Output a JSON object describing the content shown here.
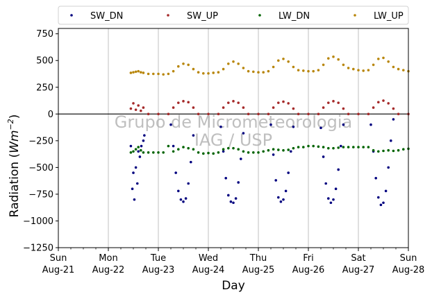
{
  "chart_data": {
    "type": "scatter",
    "title": "",
    "xlabel": "Day",
    "ylabel": "Radiation (Wm^-2)",
    "ylabel_main": "Radiation (",
    "ylabel_unit": "Wm",
    "ylabel_exp": "−2",
    "ylabel_close": ")",
    "xlim": [
      "2008-08-21",
      "2008-08-28"
    ],
    "ylim": [
      -1250,
      800
    ],
    "yticks": [
      -1250,
      -1000,
      -750,
      -500,
      -250,
      0,
      250,
      500,
      750
    ],
    "ytick_labels": [
      "−1250",
      "−1000",
      "−750",
      "−500",
      "−250",
      "0",
      "250",
      "500",
      "750"
    ],
    "xticks": [
      {
        "day": "Sun",
        "date": "Aug-21"
      },
      {
        "day": "Mon",
        "date": "Aug-22"
      },
      {
        "day": "Tue",
        "date": "Aug-23"
      },
      {
        "day": "Wed",
        "date": "Aug-24"
      },
      {
        "day": "Thu",
        "date": "Aug-25"
      },
      {
        "day": "Fri",
        "date": "Aug-26"
      },
      {
        "day": "Sat",
        "date": "Aug-27"
      },
      {
        "day": "Sun",
        "date": "Aug-28"
      }
    ],
    "grid": "vertical",
    "zero_line": 0,
    "legend_placement": "top",
    "watermark": [
      "Grupo de Micrometeorologia",
      "IAG / USP"
    ],
    "series": [
      {
        "name": "SW_DN",
        "color": "#00007f",
        "points": [
          [
            1.45,
            -300
          ],
          [
            1.48,
            -700
          ],
          [
            1.5,
            -550
          ],
          [
            1.52,
            -800
          ],
          [
            1.55,
            -500
          ],
          [
            1.58,
            -650
          ],
          [
            1.6,
            -350
          ],
          [
            1.63,
            -400
          ],
          [
            1.66,
            -300
          ],
          [
            1.7,
            -250
          ],
          [
            1.72,
            -200
          ],
          [
            2.25,
            -100
          ],
          [
            2.3,
            -300
          ],
          [
            2.35,
            -550
          ],
          [
            2.4,
            -720
          ],
          [
            2.45,
            -800
          ],
          [
            2.5,
            -820
          ],
          [
            2.55,
            -790
          ],
          [
            2.6,
            -650
          ],
          [
            2.65,
            -450
          ],
          [
            2.7,
            -200
          ],
          [
            3.25,
            -120
          ],
          [
            3.3,
            -350
          ],
          [
            3.35,
            -600
          ],
          [
            3.4,
            -760
          ],
          [
            3.45,
            -820
          ],
          [
            3.5,
            -830
          ],
          [
            3.55,
            -790
          ],
          [
            3.6,
            -640
          ],
          [
            3.65,
            -420
          ],
          [
            3.7,
            -180
          ],
          [
            4.25,
            -100
          ],
          [
            4.3,
            -380
          ],
          [
            4.35,
            -620
          ],
          [
            4.4,
            -780
          ],
          [
            4.45,
            -820
          ],
          [
            4.5,
            -800
          ],
          [
            4.55,
            -720
          ],
          [
            4.6,
            -550
          ],
          [
            4.65,
            -350
          ],
          [
            4.7,
            -120
          ],
          [
            5.25,
            -130
          ],
          [
            5.3,
            -400
          ],
          [
            5.35,
            -650
          ],
          [
            5.4,
            -790
          ],
          [
            5.45,
            -830
          ],
          [
            5.5,
            -800
          ],
          [
            5.55,
            -700
          ],
          [
            5.6,
            -520
          ],
          [
            5.65,
            -300
          ],
          [
            5.7,
            -100
          ],
          [
            6.25,
            -100
          ],
          [
            6.3,
            -350
          ],
          [
            6.35,
            -600
          ],
          [
            6.4,
            -780
          ],
          [
            6.45,
            -850
          ],
          [
            6.5,
            -830
          ],
          [
            6.55,
            -720
          ],
          [
            6.6,
            -500
          ],
          [
            6.65,
            -250
          ],
          [
            6.7,
            -50
          ]
        ]
      },
      {
        "name": "SW_UP",
        "color": "#a52a2a",
        "points": [
          [
            1.45,
            50
          ],
          [
            1.5,
            100
          ],
          [
            1.55,
            40
          ],
          [
            1.6,
            80
          ],
          [
            1.65,
            30
          ],
          [
            1.7,
            60
          ],
          [
            1.8,
            0
          ],
          [
            2.0,
            0
          ],
          [
            2.2,
            0
          ],
          [
            2.3,
            60
          ],
          [
            2.4,
            105
          ],
          [
            2.5,
            120
          ],
          [
            2.6,
            110
          ],
          [
            2.7,
            60
          ],
          [
            2.8,
            0
          ],
          [
            3.0,
            0
          ],
          [
            3.2,
            0
          ],
          [
            3.3,
            60
          ],
          [
            3.4,
            105
          ],
          [
            3.5,
            120
          ],
          [
            3.6,
            105
          ],
          [
            3.7,
            60
          ],
          [
            3.8,
            0
          ],
          [
            4.0,
            0
          ],
          [
            4.2,
            0
          ],
          [
            4.3,
            60
          ],
          [
            4.4,
            105
          ],
          [
            4.5,
            115
          ],
          [
            4.6,
            100
          ],
          [
            4.7,
            50
          ],
          [
            4.8,
            0
          ],
          [
            5.0,
            0
          ],
          [
            5.2,
            0
          ],
          [
            5.3,
            60
          ],
          [
            5.4,
            105
          ],
          [
            5.5,
            120
          ],
          [
            5.6,
            105
          ],
          [
            5.7,
            50
          ],
          [
            5.8,
            0
          ],
          [
            6.0,
            0
          ],
          [
            6.2,
            0
          ],
          [
            6.3,
            60
          ],
          [
            6.4,
            110
          ],
          [
            6.5,
            125
          ],
          [
            6.6,
            100
          ],
          [
            6.7,
            50
          ],
          [
            6.8,
            0
          ],
          [
            7.0,
            0
          ]
        ]
      },
      {
        "name": "LW_DN",
        "color": "#006400",
        "points": [
          [
            1.45,
            -360
          ],
          [
            1.5,
            -350
          ],
          [
            1.55,
            -330
          ],
          [
            1.6,
            -310
          ],
          [
            1.65,
            -340
          ],
          [
            1.7,
            -360
          ],
          [
            1.8,
            -360
          ],
          [
            1.9,
            -360
          ],
          [
            2.0,
            -360
          ],
          [
            2.1,
            -360
          ],
          [
            2.2,
            -300
          ],
          [
            2.3,
            -350
          ],
          [
            2.4,
            -330
          ],
          [
            2.5,
            -310
          ],
          [
            2.6,
            -320
          ],
          [
            2.7,
            -330
          ],
          [
            2.8,
            -360
          ],
          [
            2.9,
            -370
          ],
          [
            3.0,
            -365
          ],
          [
            3.1,
            -370
          ],
          [
            3.2,
            -360
          ],
          [
            3.3,
            -330
          ],
          [
            3.4,
            -320
          ],
          [
            3.5,
            -320
          ],
          [
            3.6,
            -330
          ],
          [
            3.7,
            -350
          ],
          [
            3.8,
            -360
          ],
          [
            3.9,
            -360
          ],
          [
            4.0,
            -360
          ],
          [
            4.1,
            -350
          ],
          [
            4.2,
            -340
          ],
          [
            4.3,
            -330
          ],
          [
            4.4,
            -335
          ],
          [
            4.5,
            -340
          ],
          [
            4.6,
            -335
          ],
          [
            4.7,
            -320
          ],
          [
            4.8,
            -310
          ],
          [
            4.9,
            -310
          ],
          [
            5.0,
            -300
          ],
          [
            5.1,
            -300
          ],
          [
            5.2,
            -305
          ],
          [
            5.3,
            -310
          ],
          [
            5.4,
            -320
          ],
          [
            5.5,
            -320
          ],
          [
            5.6,
            -315
          ],
          [
            5.7,
            -310
          ],
          [
            5.8,
            -310
          ],
          [
            5.9,
            -310
          ],
          [
            6.0,
            -310
          ],
          [
            6.1,
            -310
          ],
          [
            6.2,
            -310
          ],
          [
            6.3,
            -340
          ],
          [
            6.4,
            -350
          ],
          [
            6.5,
            -345
          ],
          [
            6.6,
            -340
          ],
          [
            6.7,
            -345
          ],
          [
            6.8,
            -340
          ],
          [
            6.9,
            -330
          ],
          [
            7.0,
            -325
          ]
        ]
      },
      {
        "name": "LW_UP",
        "color": "#b8860b",
        "points": [
          [
            1.45,
            385
          ],
          [
            1.5,
            390
          ],
          [
            1.55,
            395
          ],
          [
            1.6,
            400
          ],
          [
            1.65,
            390
          ],
          [
            1.7,
            385
          ],
          [
            1.8,
            375
          ],
          [
            1.9,
            375
          ],
          [
            2.0,
            375
          ],
          [
            2.1,
            370
          ],
          [
            2.2,
            375
          ],
          [
            2.3,
            400
          ],
          [
            2.4,
            445
          ],
          [
            2.5,
            470
          ],
          [
            2.6,
            460
          ],
          [
            2.7,
            420
          ],
          [
            2.8,
            390
          ],
          [
            2.9,
            380
          ],
          [
            3.0,
            380
          ],
          [
            3.1,
            385
          ],
          [
            3.2,
            390
          ],
          [
            3.3,
            420
          ],
          [
            3.4,
            470
          ],
          [
            3.5,
            490
          ],
          [
            3.6,
            470
          ],
          [
            3.7,
            430
          ],
          [
            3.8,
            400
          ],
          [
            3.9,
            395
          ],
          [
            4.0,
            390
          ],
          [
            4.1,
            390
          ],
          [
            4.2,
            400
          ],
          [
            4.3,
            440
          ],
          [
            4.4,
            500
          ],
          [
            4.5,
            515
          ],
          [
            4.6,
            490
          ],
          [
            4.7,
            440
          ],
          [
            4.8,
            410
          ],
          [
            4.9,
            405
          ],
          [
            5.0,
            400
          ],
          [
            5.1,
            400
          ],
          [
            5.2,
            410
          ],
          [
            5.3,
            460
          ],
          [
            5.4,
            520
          ],
          [
            5.5,
            535
          ],
          [
            5.6,
            510
          ],
          [
            5.7,
            460
          ],
          [
            5.8,
            430
          ],
          [
            5.9,
            420
          ],
          [
            6.0,
            410
          ],
          [
            6.1,
            405
          ],
          [
            6.2,
            410
          ],
          [
            6.3,
            460
          ],
          [
            6.4,
            515
          ],
          [
            6.5,
            525
          ],
          [
            6.6,
            490
          ],
          [
            6.7,
            440
          ],
          [
            6.8,
            420
          ],
          [
            6.9,
            410
          ],
          [
            7.0,
            400
          ]
        ]
      }
    ]
  }
}
